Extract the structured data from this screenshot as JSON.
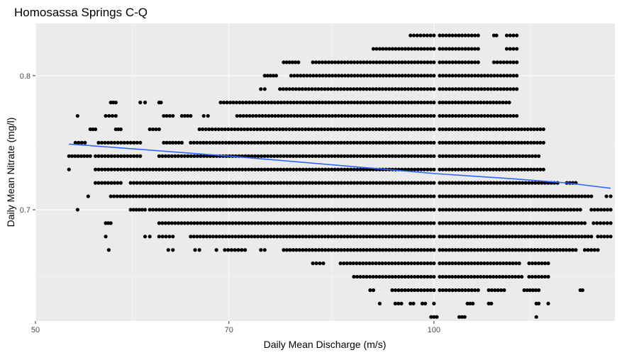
{
  "chart_data": {
    "type": "scatter",
    "title": "Homosassa Springs C-Q",
    "xlabel": "Daily Mean Discharge (m/s)",
    "ylabel": "Daily Mean Nitrate (mg/l)",
    "x_scale": "log",
    "xlim": [
      50,
      137
    ],
    "ylim": [
      0.617,
      0.839
    ],
    "x_ticks": [
      50,
      70,
      100
    ],
    "y_ticks": [
      0.7,
      0.8
    ],
    "x_tick_labels": [
      "50",
      "70",
      "100"
    ],
    "y_tick_labels": [
      "0.7",
      "0.8"
    ],
    "grid": true,
    "colors": {
      "panel": "#ebebeb",
      "grid_major": "#ffffff",
      "points": "#000000",
      "trend": "#3366ff"
    },
    "y_levels": [
      0.62,
      0.63,
      0.64,
      0.65,
      0.66,
      0.67,
      0.68,
      0.69,
      0.7,
      0.71,
      0.72,
      0.73,
      0.74,
      0.75,
      0.76,
      0.77,
      0.78,
      0.79,
      0.8,
      0.81,
      0.82,
      0.83
    ],
    "series": [
      {
        "type": "points",
        "bands": [
          {
            "y": 0.83,
            "segments": [
              [
                96.0,
                100.0
              ],
              [
                101.0,
                108.0
              ],
              [
                111.0,
                111.5
              ],
              [
                113.5,
                115.5
              ]
            ]
          },
          {
            "y": 0.82,
            "segments": [
              [
                90.0,
                100.0
              ],
              [
                101.0,
                108.0
              ],
              [
                113.5,
                115.5
              ]
            ]
          },
          {
            "y": 0.81,
            "segments": [
              [
                77.0,
                79.0
              ],
              [
                81.0,
                100.0
              ],
              [
                101.0,
                108.0
              ],
              [
                111.0,
                115.5
              ]
            ]
          },
          {
            "y": 0.8,
            "segments": [
              [
                74.5,
                76.0
              ],
              [
                78.0,
                100.0
              ],
              [
                101.0,
                115.5
              ]
            ]
          },
          {
            "y": 0.79,
            "segments": [
              [
                74.0,
                74.5
              ],
              [
                76.5,
                100.0
              ],
              [
                101.0,
                115.5
              ]
            ]
          },
          {
            "y": 0.78,
            "segments": [
              [
                57.0,
                57.5
              ],
              [
                60.0,
                60.5
              ],
              [
                62.0,
                62.2
              ],
              [
                69.0,
                100.0
              ],
              [
                101.0,
                114.0
              ]
            ]
          },
          {
            "y": 0.77,
            "segments": [
              [
                53.8,
                53.8
              ],
              [
                56.5,
                57.5
              ],
              [
                62.5,
                63.5
              ],
              [
                64.5,
                65.5
              ],
              [
                67.0,
                67.5
              ],
              [
                71.0,
                100.0
              ],
              [
                101.0,
                115.5
              ]
            ]
          },
          {
            "y": 0.76,
            "segments": [
              [
                55.0,
                55.5
              ],
              [
                57.5,
                58.0
              ],
              [
                61.0,
                62.0
              ],
              [
                66.5,
                100.0
              ],
              [
                101.0,
                121.0
              ]
            ]
          },
          {
            "y": 0.75,
            "segments": [
              [
                53.6,
                54.5
              ],
              [
                55.8,
                60.0
              ],
              [
                62.5,
                64.5
              ],
              [
                65.5,
                100.0
              ],
              [
                101.0,
                121.0
              ]
            ]
          },
          {
            "y": 0.74,
            "segments": [
              [
                53.0,
                55.0
              ],
              [
                55.5,
                60.0
              ],
              [
                62.0,
                100.0
              ],
              [
                101.0,
                120.0
              ]
            ]
          },
          {
            "y": 0.73,
            "segments": [
              [
                53.0,
                53.0
              ],
              [
                55.5,
                100.0
              ],
              [
                101.0,
                121.0
              ]
            ]
          },
          {
            "y": 0.72,
            "segments": [
              [
                55.5,
                58.0
              ],
              [
                59.0,
                100.0
              ],
              [
                101.0,
                124.0
              ],
              [
                126.0,
                128.0
              ]
            ]
          },
          {
            "y": 0.71,
            "segments": [
              [
                54.8,
                54.8
              ],
              [
                57.0,
                100.0
              ],
              [
                101.0,
                131.5
              ],
              [
                135.0,
                136.0
              ]
            ]
          },
          {
            "y": 0.7,
            "segments": [
              [
                53.8,
                53.8
              ],
              [
                59.0,
                60.5
              ],
              [
                61.0,
                100.0
              ],
              [
                101.0,
                129.0
              ],
              [
                131.5,
                136.0
              ]
            ]
          },
          {
            "y": 0.69,
            "segments": [
              [
                56.5,
                57.0
              ],
              [
                62.0,
                100.0
              ],
              [
                101.0,
                130.0
              ],
              [
                132.0,
                136.0
              ]
            ]
          },
          {
            "y": 0.68,
            "segments": [
              [
                56.5,
                56.5
              ],
              [
                60.5,
                61.0
              ],
              [
                62.0,
                63.5
              ],
              [
                65.5,
                100.0
              ],
              [
                101.0,
                131.5
              ],
              [
                133.0,
                136.0
              ]
            ]
          },
          {
            "y": 0.67,
            "segments": [
              [
                56.8,
                56.8
              ],
              [
                63.0,
                63.5
              ],
              [
                66.0,
                66.5
              ],
              [
                68.5,
                68.5
              ],
              [
                69.5,
                72.0
              ],
              [
                74.0,
                74.5
              ],
              [
                77.0,
                100.0
              ],
              [
                101.0,
                128.0
              ],
              [
                130.0,
                133.0
              ]
            ]
          },
          {
            "y": 0.66,
            "segments": [
              [
                81.0,
                82.5
              ],
              [
                85.0,
                100.0
              ],
              [
                101.0,
                116.0
              ],
              [
                118.0,
                122.0
              ]
            ]
          },
          {
            "y": 0.65,
            "segments": [
              [
                87.0,
                100.0
              ],
              [
                101.0,
                116.5
              ],
              [
                118.0,
                122.0
              ]
            ]
          },
          {
            "y": 0.64,
            "segments": [
              [
                89.5,
                90.0
              ],
              [
                93.0,
                100.0
              ],
              [
                101.0,
                108.0
              ],
              [
                110.0,
                113.0
              ],
              [
                117.0,
                120.0
              ],
              [
                129.0,
                129.5
              ]
            ]
          },
          {
            "y": 0.63,
            "segments": [
              [
                91.0,
                91.0
              ],
              [
                93.5,
                94.5
              ],
              [
                96.0,
                96.5
              ],
              [
                98.0,
                98.5
              ],
              [
                100.0,
                100.0
              ],
              [
                106.0,
                107.0
              ],
              [
                110.0,
                110.5
              ],
              [
                119.5,
                120.0
              ],
              [
                122.0,
                122.0
              ]
            ]
          },
          {
            "y": 0.62,
            "segments": [
              [
                99.5,
                100.5
              ],
              [
                104.5,
                105.5
              ],
              [
                119.5,
                119.5
              ]
            ]
          }
        ]
      },
      {
        "type": "trend",
        "x": [
          53.0,
          60.0,
          70.0,
          85.0,
          100.0,
          115.0,
          126.0,
          136.0
        ],
        "y": [
          0.749,
          0.745,
          0.74,
          0.733,
          0.727,
          0.723,
          0.72,
          0.716
        ]
      }
    ]
  }
}
